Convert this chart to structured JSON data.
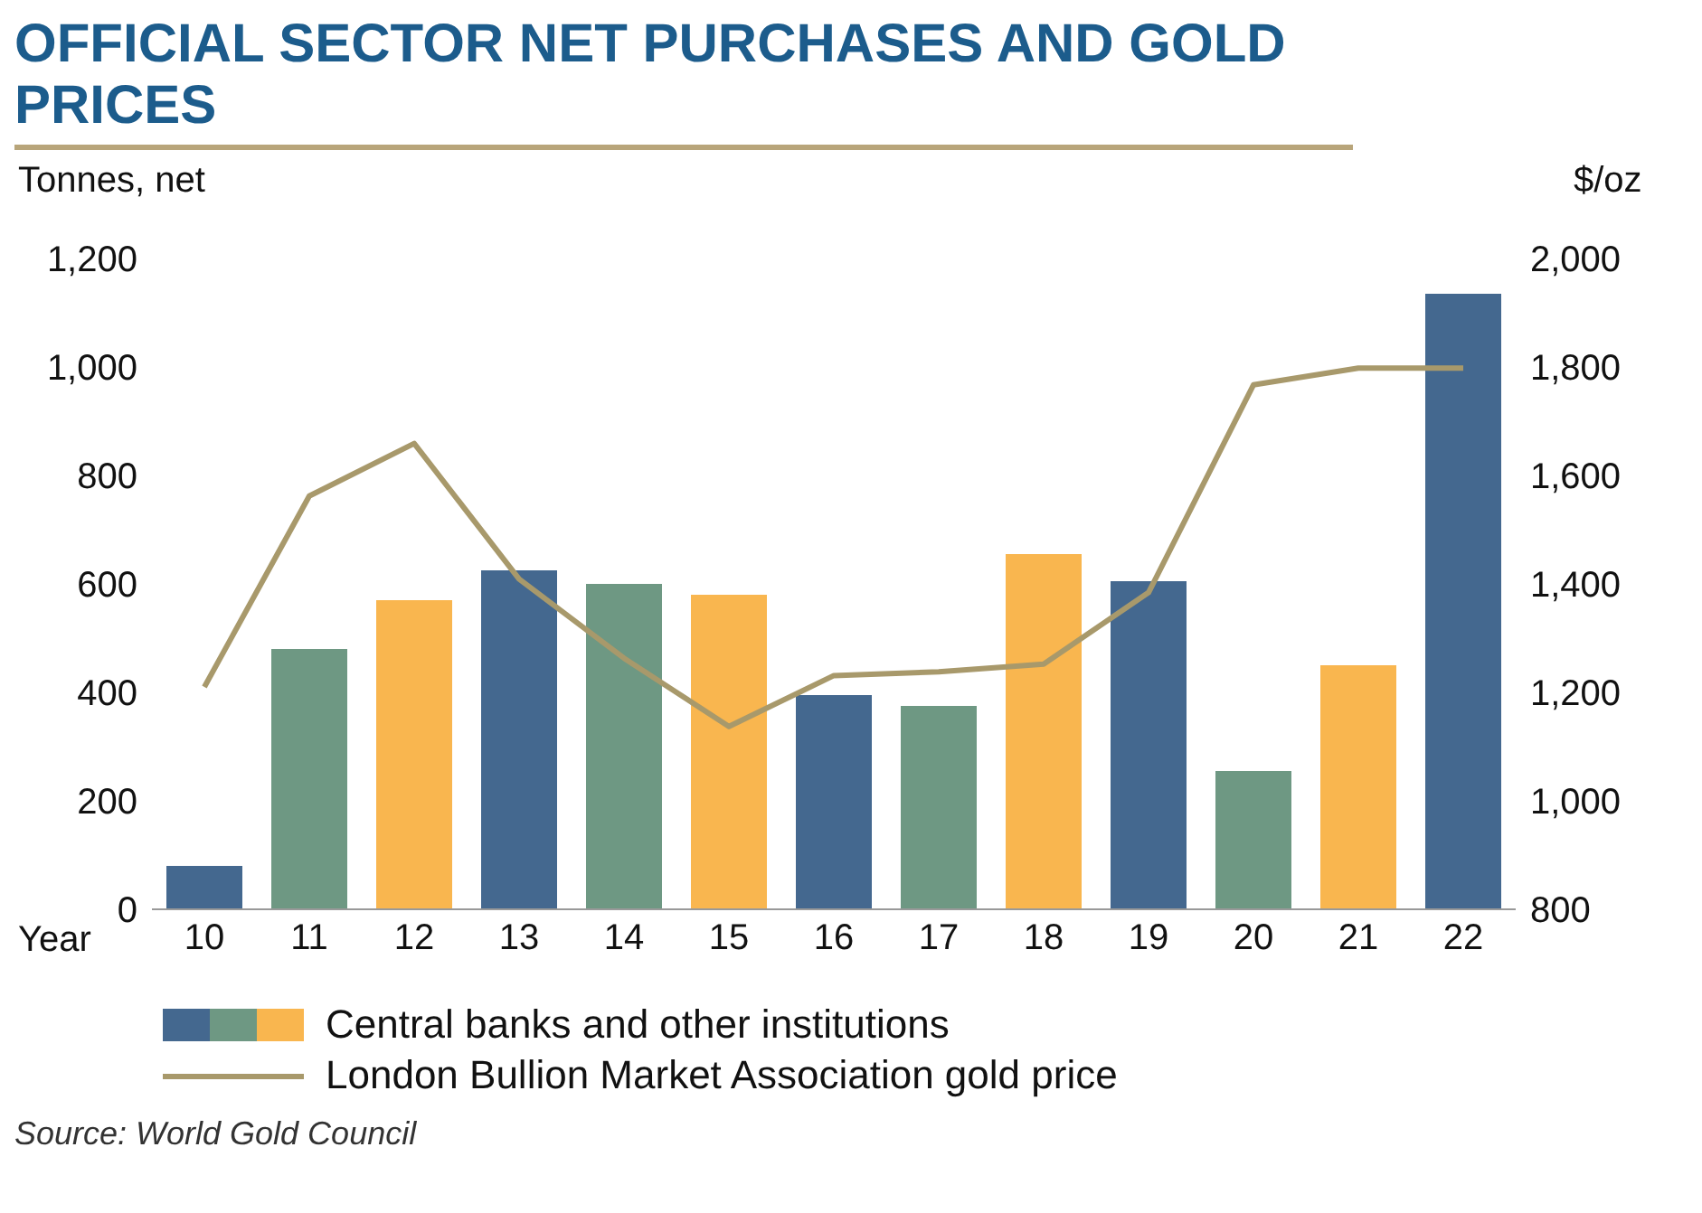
{
  "chart_data": {
    "type": "bar",
    "title": "OFFICIAL SECTOR NET PURCHASES AND GOLD PRICES",
    "xlabel": "Year",
    "ylabel": "Tonnes, net",
    "y2label": "$/oz",
    "categories": [
      "10",
      "11",
      "12",
      "13",
      "14",
      "15",
      "16",
      "17",
      "18",
      "19",
      "20",
      "21",
      "22"
    ],
    "series": [
      {
        "name": "Central banks and other institutions",
        "colors": [
          "#44688f",
          "#6e9883",
          "#f9b64f",
          "#44688f",
          "#6e9883",
          "#f9b64f",
          "#44688f",
          "#6e9883",
          "#f9b64f",
          "#44688f",
          "#6e9883",
          "#f9b64f",
          "#44688f"
        ],
        "values": [
          80,
          480,
          570,
          625,
          600,
          580,
          395,
          375,
          655,
          605,
          255,
          450,
          1135
        ]
      },
      {
        "name": "London Bullion Market Association gold price",
        "type": "line",
        "axis": "y2",
        "color": "#a8996b",
        "values": [
          1210,
          1562,
          1659,
          1409,
          1263,
          1137,
          1231,
          1238,
          1252,
          1384,
          1767,
          1798,
          1798
        ]
      }
    ],
    "ylim": [
      0,
      1200
    ],
    "yticks": [
      0,
      200,
      400,
      600,
      800,
      {
        "value": 1000,
        "label": "1,000"
      },
      {
        "value": 1200,
        "label": "1,200"
      }
    ],
    "y2lim": [
      800,
      2000
    ],
    "y2ticks": [
      800,
      {
        "value": 1000,
        "label": "1,000"
      },
      {
        "value": 1200,
        "label": "1,200"
      },
      {
        "value": 1400,
        "label": "1,400"
      },
      {
        "value": 1600,
        "label": "1,600"
      },
      {
        "value": 1800,
        "label": "1,800"
      },
      {
        "value": 2000,
        "label": "2,000"
      }
    ],
    "grid": false,
    "legend": "bottom",
    "marker": "none",
    "annotations": [
      "Source: World Gold Council"
    ]
  }
}
